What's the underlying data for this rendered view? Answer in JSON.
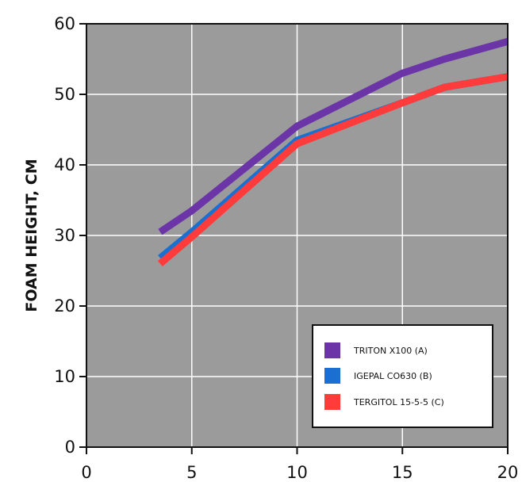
{
  "chart_data": {
    "type": "line",
    "title": "",
    "xlabel": "",
    "ylabel": "FOAM HEIGHT, CM",
    "xlim": [
      0,
      20
    ],
    "ylim": [
      0,
      60
    ],
    "x_ticks": [
      "0",
      "5",
      "10",
      "15",
      "20"
    ],
    "y_ticks": [
      "0",
      "10",
      "20",
      "30",
      "40",
      "50",
      "60"
    ],
    "grid": true,
    "legend_position": "bottom-right",
    "background": "#9b9b9b",
    "series": [
      {
        "name": "TRITON X100 (A)",
        "color": "#6b35a8",
        "x": [
          3.5,
          5,
          10,
          15,
          17,
          20
        ],
        "y": [
          30.5,
          33.5,
          45.5,
          53,
          55,
          57.5
        ]
      },
      {
        "name": "IGEPAL CO630 (B)",
        "color": "#1a6fd1",
        "x": [
          3.5,
          5,
          10,
          15,
          17,
          20
        ],
        "y": [
          26.8,
          30.5,
          43.5,
          48.8,
          51,
          52.5
        ]
      },
      {
        "name": "TERGITOL 15-5-5 (C)",
        "color": "#ff3b3b",
        "x": [
          3.5,
          5,
          10,
          15,
          17,
          20
        ],
        "y": [
          26,
          29.8,
          43,
          48.8,
          51,
          52.5
        ]
      }
    ]
  }
}
